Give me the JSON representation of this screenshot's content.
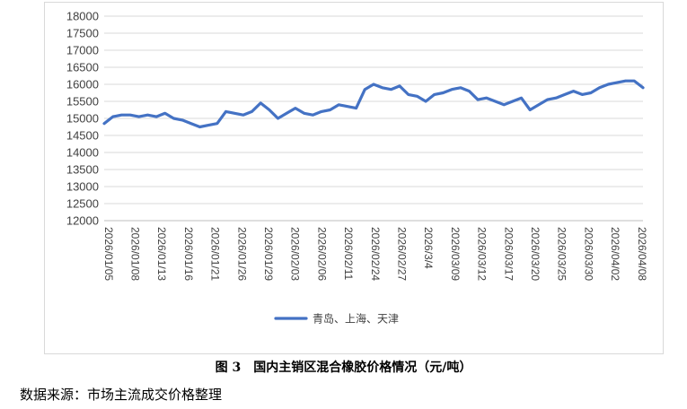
{
  "chart_data": {
    "type": "line",
    "ylim": [
      12000,
      18000
    ],
    "yticks": [
      "18000",
      "17500",
      "17000",
      "16500",
      "16000",
      "15500",
      "15000",
      "14500",
      "14000",
      "13500",
      "13000",
      "12500",
      "12000"
    ],
    "xtick_labels": [
      "2026/01/05",
      "2026/01/08",
      "2026/01/13",
      "2026/01/16",
      "2026/01/21",
      "2026/01/26",
      "2026/01/29",
      "2026/02/03",
      "2026/02/06",
      "2026/02/11",
      "2026/02/24",
      "2026/02/27",
      "2026/3/4",
      "2026/03/09",
      "2026/03/12",
      "2026/03/17",
      "2026/03/20",
      "2026/03/25",
      "2026/03/30",
      "2026/04/02",
      "2026/04/08"
    ],
    "grid": true,
    "legend_position": "bottom",
    "color": "#4472C4",
    "series": [
      {
        "name": "青岛、上海、天津",
        "values": [
          14850,
          15050,
          15100,
          15100,
          15050,
          15100,
          15050,
          15150,
          15000,
          14950,
          14850,
          14750,
          14800,
          14850,
          15200,
          15150,
          15100,
          15200,
          15450,
          15250,
          15000,
          15150,
          15300,
          15150,
          15100,
          15200,
          15250,
          15400,
          15350,
          15300,
          15850,
          16000,
          15900,
          15850,
          15950,
          15700,
          15650,
          15500,
          15700,
          15750,
          15850,
          15900,
          15800,
          15550,
          15600,
          15500,
          15400,
          15500,
          15600,
          15250,
          15400,
          15550,
          15600,
          15700,
          15800,
          15700,
          15750,
          15900,
          16000,
          16050,
          16100,
          16100,
          15900
        ]
      }
    ]
  },
  "caption": "图 3　国内主销区混合橡胶价格情况（元/吨）",
  "source": "数据来源：市场主流成交价格整理"
}
